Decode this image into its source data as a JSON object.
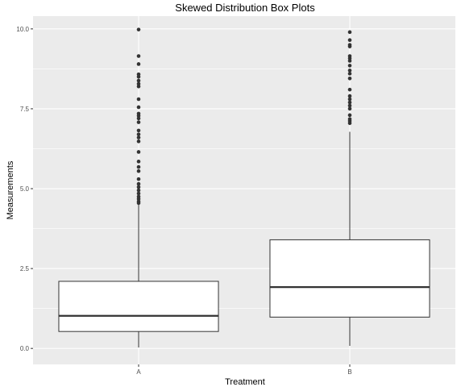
{
  "chart_data": {
    "type": "boxplot",
    "title": "Skewed Distribution Box Plots",
    "xlabel": "Treatment",
    "ylabel": "Measurements",
    "categories": [
      "A",
      "B"
    ],
    "ylim": [
      -0.5,
      10.4
    ],
    "yticks": [
      0.0,
      2.5,
      5.0,
      7.5,
      10.0
    ],
    "ytick_labels": [
      "0.0",
      "2.5",
      "5.0",
      "7.5",
      "10.0"
    ],
    "grid": true,
    "legend": "none",
    "colors": {
      "panel": "#ebebeb",
      "grid": "#ffffff",
      "box_fill": "#ffffff",
      "box_stroke": "#333333",
      "outlier": "#333333"
    },
    "boxes": [
      {
        "name": "A",
        "whisker_low": 0.03,
        "q1": 0.53,
        "median": 1.02,
        "q3": 2.1,
        "whisker_high": 4.5,
        "outliers": [
          4.55,
          4.6,
          4.68,
          4.75,
          4.85,
          4.95,
          5.05,
          5.15,
          5.3,
          5.55,
          5.68,
          5.85,
          6.15,
          6.48,
          6.6,
          6.7,
          6.82,
          7.08,
          7.2,
          7.28,
          7.35,
          7.55,
          7.8,
          8.2,
          8.28,
          8.38,
          8.5,
          8.58,
          8.9,
          9.15,
          9.98
        ]
      },
      {
        "name": "B",
        "whisker_low": 0.08,
        "q1": 0.98,
        "median": 1.92,
        "q3": 3.4,
        "whisker_high": 6.78,
        "outliers": [
          7.05,
          7.12,
          7.18,
          7.3,
          7.5,
          7.6,
          7.7,
          7.8,
          7.9,
          8.1,
          8.45,
          8.6,
          8.7,
          8.85,
          9.0,
          9.08,
          9.15,
          9.45,
          9.5,
          9.65,
          9.9
        ]
      }
    ]
  }
}
